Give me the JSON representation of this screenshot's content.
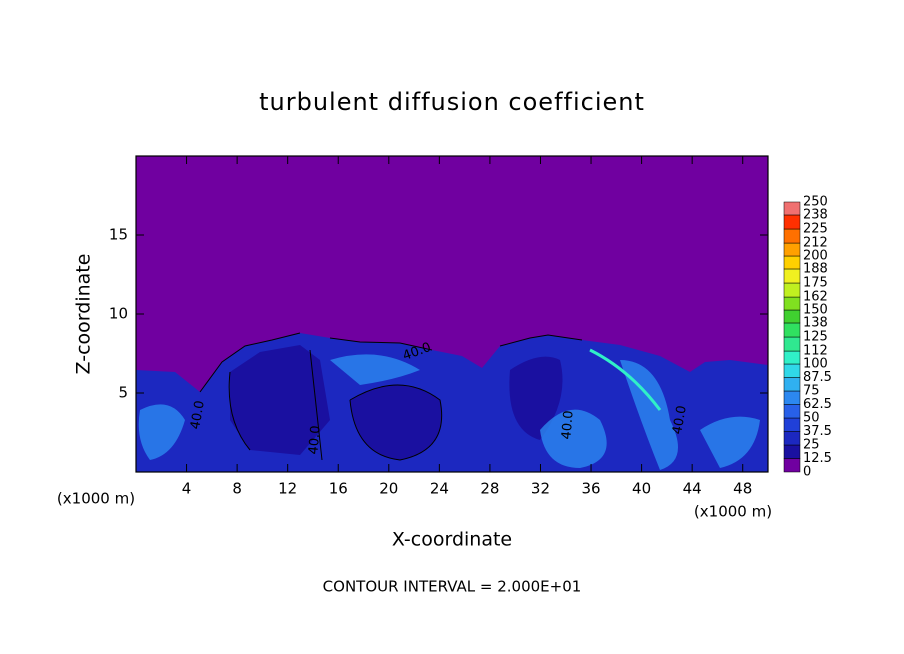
{
  "chart_data": {
    "type": "contour",
    "title": "turbulent diffusion coefficient",
    "xlabel": "X-coordinate",
    "ylabel": "Z-coordinate",
    "x_unit_label": "(x1000 m)",
    "note": "CONTOUR INTERVAL = 2.000E+01",
    "contour_label": "40.0",
    "xlim": [
      0,
      50
    ],
    "xticks": [
      4,
      8,
      12,
      16,
      20,
      24,
      28,
      32,
      36,
      40,
      44,
      48
    ],
    "ylim": [
      0,
      20
    ],
    "yticks": [
      5,
      10,
      15
    ],
    "colorbar": {
      "levels": [
        0,
        12.5,
        25,
        37.5,
        50,
        62.5,
        75,
        87.5,
        100,
        112,
        125,
        138,
        150,
        162,
        175,
        188,
        200,
        212,
        225,
        238,
        250
      ],
      "colors": [
        "#7000a0",
        "#1a10a0",
        "#1c28c0",
        "#2040d8",
        "#2860e8",
        "#2c88f0",
        "#30b0f0",
        "#30d8e8",
        "#30f0c8",
        "#30e890",
        "#30e060",
        "#40d030",
        "#80e020",
        "#c0f020",
        "#f0f020",
        "#ffd000",
        "#ffa000",
        "#ff7000",
        "#ff3000",
        "#f07070"
      ]
    }
  }
}
